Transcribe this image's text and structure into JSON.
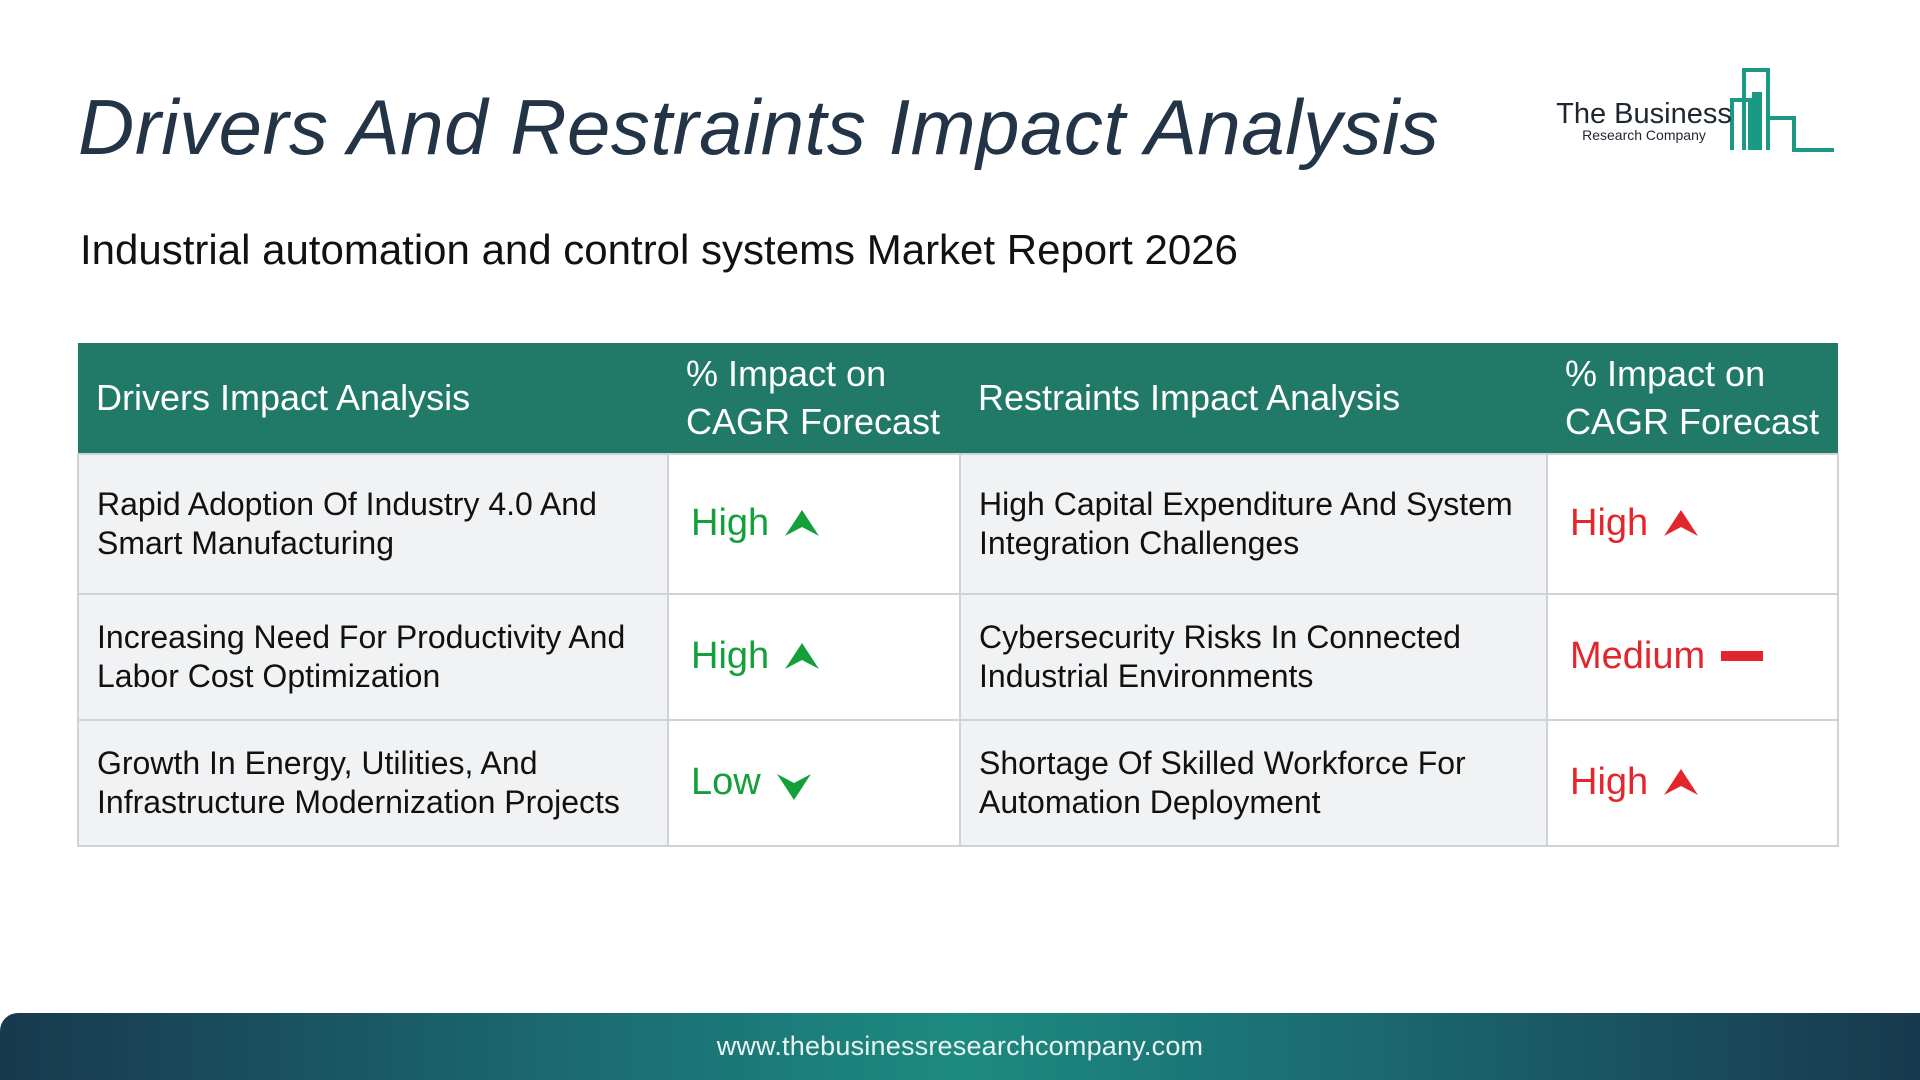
{
  "title": "Drivers And Restraints Impact Analysis",
  "subtitle": "Industrial automation and control systems Market Report 2026",
  "logo": {
    "name": "The Business",
    "sub": "Research Company",
    "color": "#1a9a83"
  },
  "table": {
    "headers": {
      "drivers": "Drivers Impact Analysis",
      "drivers_impact_line1": "% Impact on",
      "drivers_impact_line2": "CAGR Forecast",
      "restraints": "Restraints Impact Analysis",
      "restraints_impact_line1": "% Impact on",
      "restraints_impact_line2": "CAGR Forecast"
    },
    "header_color": "#217a68",
    "driver_color": "#13a03b",
    "restraint_color": "#e3262b",
    "rows": [
      {
        "driver": "Rapid Adoption Of Industry 4.0 And Smart Manufacturing",
        "driver_impact": "High",
        "driver_icon": "arrow-up-icon",
        "restraint": "High Capital Expenditure And System Integration Challenges",
        "restraint_impact": "High",
        "restraint_icon": "arrow-up-icon"
      },
      {
        "driver": "Increasing Need For Productivity And Labor Cost Optimization",
        "driver_impact": "High",
        "driver_icon": "arrow-up-icon",
        "restraint": "Cybersecurity Risks In Connected Industrial Environments",
        "restraint_impact": "Medium",
        "restraint_icon": "dash-icon"
      },
      {
        "driver": "Growth In Energy, Utilities, And Infrastructure Modernization Projects",
        "driver_impact": "Low",
        "driver_icon": "arrow-down-icon",
        "restraint": "Shortage Of Skilled Workforce For Automation Deployment",
        "restraint_impact": "High",
        "restraint_icon": "arrow-up-icon"
      }
    ]
  },
  "footer": {
    "url": "www.thebusinessresearchcompany.com"
  }
}
